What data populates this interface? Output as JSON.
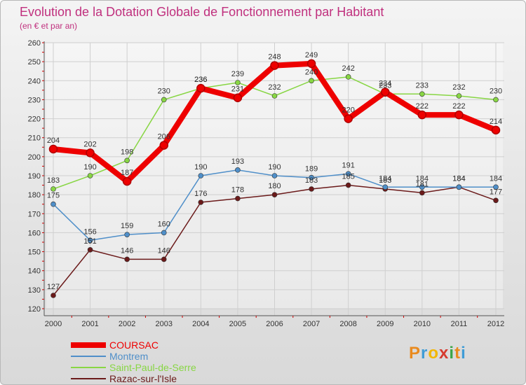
{
  "chart_data": {
    "type": "line",
    "title": "Evolution de la Dotation Globale de Fonctionnement par Habitant",
    "subtitle": "(en € et par an)",
    "categories": [
      "2000",
      "2001",
      "2002",
      "2003",
      "2004",
      "2005",
      "2006",
      "2007",
      "2008",
      "2009",
      "2010",
      "2011",
      "2012"
    ],
    "ylim": [
      120,
      260
    ],
    "yticks": [
      120,
      130,
      140,
      150,
      160,
      170,
      180,
      190,
      200,
      210,
      220,
      230,
      240,
      250,
      260
    ],
    "grid": true,
    "series": [
      {
        "name": "COURSAC",
        "values": [
          204,
          202,
          187,
          206,
          236,
          231,
          248,
          249,
          220,
          234,
          222,
          222,
          214
        ],
        "color": "#ee0000",
        "emphasis": true,
        "label_side": "above"
      },
      {
        "name": "Montrem",
        "values": [
          175,
          156,
          159,
          160,
          190,
          193,
          190,
          189,
          191,
          184,
          184,
          184,
          184
        ],
        "color": "#4f8fc9",
        "label_side": "above"
      },
      {
        "name": "Saint-Paul-de-Serre",
        "values": [
          183,
          190,
          198,
          230,
          236,
          239,
          232,
          240,
          242,
          233,
          233,
          232,
          230
        ],
        "color": "#88d644",
        "label_side": "above"
      },
      {
        "name": "Razac-sur-l'Isle",
        "values": [
          127,
          151,
          146,
          146,
          176,
          178,
          180,
          183,
          185,
          183,
          181,
          184,
          177
        ],
        "color": "#6b1a1a",
        "label_side": "above"
      }
    ]
  },
  "logo": {
    "letters": [
      "P",
      "r",
      "o",
      "x",
      "i",
      "t",
      "i"
    ]
  }
}
